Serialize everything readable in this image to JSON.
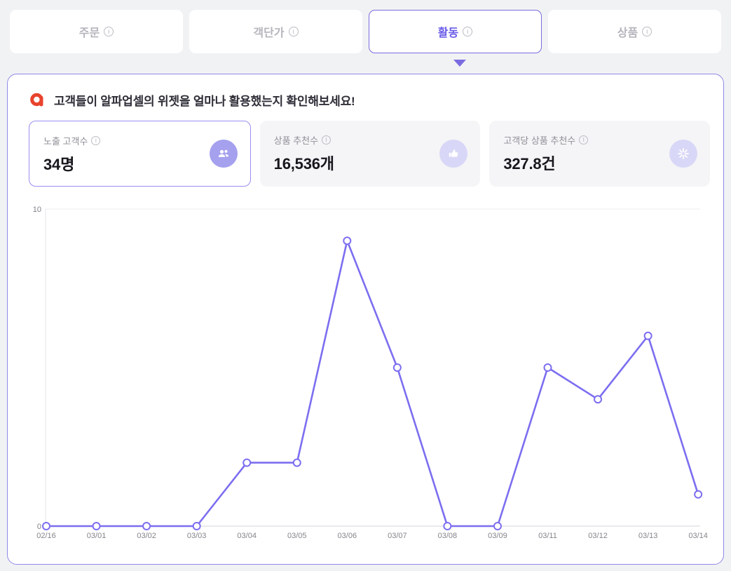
{
  "colors": {
    "accent_purple": "#6a5ce8",
    "line_purple": "#7c6ef0",
    "panel_border": "#9089e8",
    "inactive_tab_text": "#b5b5bd",
    "card_bg": "#f5f5f7",
    "icon_circle_solid": "#a5a1ee",
    "icon_circle_light": "#d9d7f7",
    "logo_red": "#e8432e",
    "page_bg": "#f1f2f4"
  },
  "tabs": [
    {
      "label": "주문",
      "active": false
    },
    {
      "label": "객단가",
      "active": false
    },
    {
      "label": "활동",
      "active": true
    },
    {
      "label": "상품",
      "active": false
    }
  ],
  "info_icon_glyph": "i",
  "banner": {
    "text": "고객들이 알파업셀의 위젯을 얼마나 활용했는지 확인해보세요!"
  },
  "stats": [
    {
      "label": "노출 고객수",
      "value": "34명",
      "icon": "users-icon",
      "selected": true
    },
    {
      "label": "상품 추천수",
      "value": "16,536개",
      "icon": "thumbs-up-icon",
      "selected": false
    },
    {
      "label": "고객당 상품 추천수",
      "value": "327.8건",
      "icon": "burst-icon",
      "selected": false
    }
  ],
  "chart_data": {
    "type": "line",
    "series_name": "노출 고객수",
    "x": [
      "02/16",
      "03/01",
      "03/02",
      "03/03",
      "03/04",
      "03/05",
      "03/06",
      "03/07",
      "03/08",
      "03/09",
      "03/11",
      "03/12",
      "03/13",
      "03/14"
    ],
    "values": [
      0,
      0,
      0,
      0,
      2,
      2,
      9,
      5,
      0,
      0,
      5,
      4,
      6,
      1
    ],
    "title": "",
    "xlabel": "",
    "ylabel": "",
    "ylim": [
      0,
      10
    ],
    "yticks": [
      0,
      10
    ],
    "grid": "top-gridline-only",
    "legend": "none",
    "marker": "open-circle",
    "line_color": "#7c6ef0"
  }
}
